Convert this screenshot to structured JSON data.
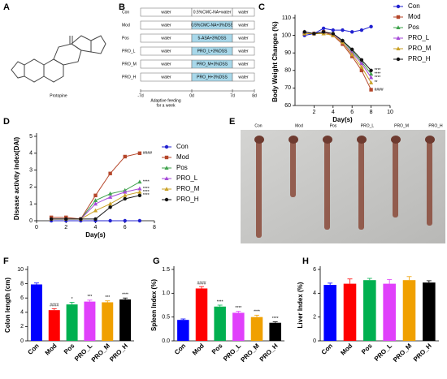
{
  "structure": {
    "label": "A",
    "name": "Protopine"
  },
  "design": {
    "label": "B",
    "rows": [
      {
        "group": "Con",
        "phases": [
          "water",
          "0.5%CMC-NA+water",
          "water"
        ]
      },
      {
        "group": "Mod",
        "phases": [
          "water",
          "0.5%CMC-NA+3%DSS",
          "water"
        ]
      },
      {
        "group": "Pos",
        "phases": [
          "water",
          "5-ASA+3%DSS",
          "water"
        ]
      },
      {
        "group": "PRO_L",
        "phases": [
          "water",
          "PRO_L+3%DSS",
          "water"
        ]
      },
      {
        "group": "PRO_M",
        "phases": [
          "water",
          "PRO_M+3%DSS",
          "water"
        ]
      },
      {
        "group": "PRO_H",
        "phases": [
          "water",
          "PRO_H+3%DSS",
          "water"
        ]
      }
    ],
    "timeline": [
      "-7d",
      "0d",
      "7d",
      "8d"
    ],
    "note": [
      "Adaptive feeding",
      "for a week"
    ]
  },
  "photo": {
    "label": "E",
    "groups": [
      "Con",
      "Mod",
      "Pos",
      "PRO_L",
      "PRO_M",
      "PRO_H"
    ]
  },
  "chart_data": [
    {
      "type": "line",
      "label": "C",
      "ylabel": "Body Weight Changes (%)",
      "xlabel": "Day(s)",
      "x": [
        1,
        2,
        3,
        4,
        5,
        6,
        7,
        8
      ],
      "xlim": [
        0,
        10
      ],
      "xticks": [
        2,
        4,
        6,
        8,
        10
      ],
      "ylim": [
        60,
        110
      ],
      "yticks": [
        60,
        70,
        80,
        90,
        100,
        110
      ],
      "series": [
        {
          "name": "Con",
          "color": "#2020d0",
          "marker": "circle",
          "values": [
            100,
            101,
            104,
            103,
            103,
            102,
            103,
            105
          ],
          "sig": null
        },
        {
          "name": "Mod",
          "color": "#b5462a",
          "marker": "square",
          "values": [
            101,
            101,
            102,
            100,
            95,
            88,
            80,
            69
          ],
          "sig": "####"
        },
        {
          "name": "Pos",
          "color": "#3fa34d",
          "marker": "triangle",
          "values": [
            102,
            101,
            102,
            101,
            97,
            91,
            85,
            78
          ],
          "sig": "****"
        },
        {
          "name": "PRO_L",
          "color": "#a64ad8",
          "marker": "triangle",
          "values": [
            102,
            101,
            102,
            101,
            96,
            90,
            84,
            76
          ],
          "sig": "****"
        },
        {
          "name": "PRO_M",
          "color": "#c9a227",
          "marker": "triangle",
          "values": [
            101,
            101,
            101,
            100,
            96,
            89,
            82,
            73
          ],
          "sig": "**"
        },
        {
          "name": "PRO_H",
          "color": "#111111",
          "marker": "circle",
          "values": [
            102,
            101,
            102,
            101,
            97,
            92,
            86,
            80
          ],
          "sig": "****"
        }
      ]
    },
    {
      "type": "line",
      "label": "D",
      "ylabel": "Disease activity index(DAI)",
      "xlabel": "Day(s)",
      "x": [
        1,
        2,
        3,
        4,
        5,
        6,
        7
      ],
      "xlim": [
        0,
        8
      ],
      "xticks": [
        0,
        2,
        4,
        6,
        8
      ],
      "ylim": [
        0,
        5
      ],
      "yticks": [
        0,
        1,
        2,
        3,
        4,
        5
      ],
      "series": [
        {
          "name": "Con",
          "color": "#2020d0",
          "marker": "circle",
          "values": [
            0,
            0,
            0,
            0,
            0,
            0,
            0
          ],
          "sig": null
        },
        {
          "name": "Mod",
          "color": "#b5462a",
          "marker": "square",
          "values": [
            0.2,
            0.2,
            0.1,
            1.5,
            2.8,
            3.8,
            4.0
          ],
          "sig": "####"
        },
        {
          "name": "Pos",
          "color": "#3fa34d",
          "marker": "triangle",
          "values": [
            0.1,
            0.1,
            0.1,
            1.2,
            1.6,
            1.8,
            2.3
          ],
          "sig": "****"
        },
        {
          "name": "PRO_L",
          "color": "#a64ad8",
          "marker": "triangle",
          "values": [
            0.1,
            0.1,
            0.1,
            1.0,
            1.4,
            1.7,
            1.9
          ],
          "sig": "****"
        },
        {
          "name": "PRO_M",
          "color": "#c9a227",
          "marker": "triangle",
          "values": [
            0.1,
            0.1,
            0.1,
            0.6,
            1.0,
            1.5,
            1.7
          ],
          "sig": "****"
        },
        {
          "name": "PRO_H",
          "color": "#111111",
          "marker": "circle",
          "values": [
            0.1,
            0.1,
            0.1,
            0.1,
            0.8,
            1.3,
            1.5
          ],
          "sig": "****"
        }
      ]
    },
    {
      "type": "bar",
      "label": "F",
      "ylabel": "Colon length (cm)",
      "categories": [
        "Con",
        "Mod",
        "Pos",
        "PRO_L",
        "PRO_M",
        "PRO_H"
      ],
      "values": [
        7.9,
        4.3,
        5.1,
        5.5,
        5.4,
        5.8
      ],
      "errors": [
        0.2,
        0.2,
        0.3,
        0.2,
        0.2,
        0.2
      ],
      "sig": [
        null,
        "####",
        "*",
        "***",
        "***",
        "****"
      ],
      "colors": [
        "#0000ff",
        "#ff0000",
        "#00b050",
        "#e040fb",
        "#f0a000",
        "#000000"
      ],
      "ylim": [
        0,
        10
      ],
      "yticks": [
        0,
        2,
        4,
        6,
        8,
        10
      ]
    },
    {
      "type": "bar",
      "label": "G",
      "ylabel": "Spleen Index (%)",
      "categories": [
        "Con",
        "Mod",
        "Pos",
        "PRO_L",
        "PRO_M",
        "PRO_H"
      ],
      "values": [
        0.44,
        1.1,
        0.72,
        0.59,
        0.5,
        0.38
      ],
      "errors": [
        0.02,
        0.04,
        0.03,
        0.03,
        0.04,
        0.02
      ],
      "sig": [
        null,
        "####",
        "****",
        "****",
        "****",
        "****"
      ],
      "colors": [
        "#0000ff",
        "#ff0000",
        "#00b050",
        "#e040fb",
        "#f0a000",
        "#000000"
      ],
      "ylim": [
        0,
        1.5
      ],
      "yticks": [
        {
          "value": 0,
          "label": "0.0"
        },
        0.5,
        {
          "value": 1,
          "label": "1.0"
        },
        1.5
      ]
    },
    {
      "type": "bar",
      "label": "H",
      "ylabel": "Liver Index (%)",
      "categories": [
        "Con",
        "Mod",
        "Pos",
        "PRO_L",
        "PRO_M",
        "PRO_H"
      ],
      "values": [
        4.7,
        4.8,
        5.1,
        4.8,
        5.1,
        4.9
      ],
      "errors": [
        0.15,
        0.4,
        0.15,
        0.35,
        0.3,
        0.15
      ],
      "sig": [
        null,
        null,
        null,
        null,
        null,
        null
      ],
      "colors": [
        "#0000ff",
        "#ff0000",
        "#00b050",
        "#e040fb",
        "#f0a000",
        "#000000"
      ],
      "ylim": [
        0,
        6
      ],
      "yticks": [
        0,
        2,
        4,
        6
      ]
    }
  ]
}
